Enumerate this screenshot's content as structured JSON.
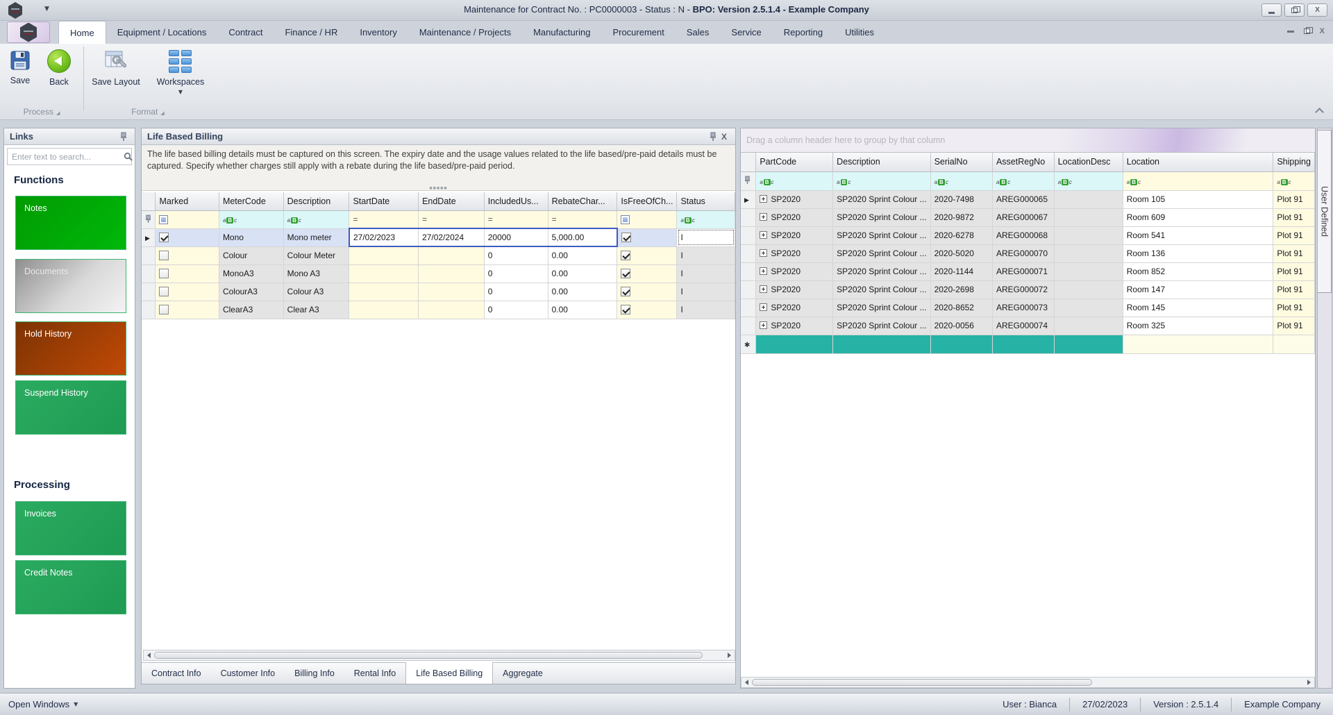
{
  "titlebar": {
    "title_left": "Maintenance for Contract No. : PC0000003 - Status : N - ",
    "title_right": "BPO: Version 2.5.1.4 - Example Company"
  },
  "ribbon": {
    "tabs": [
      {
        "label": "Home",
        "active": true
      },
      {
        "label": "Equipment / Locations"
      },
      {
        "label": "Contract"
      },
      {
        "label": "Finance / HR"
      },
      {
        "label": "Inventory"
      },
      {
        "label": "Maintenance / Projects"
      },
      {
        "label": "Manufacturing"
      },
      {
        "label": "Procurement"
      },
      {
        "label": "Sales"
      },
      {
        "label": "Service"
      },
      {
        "label": "Reporting"
      },
      {
        "label": "Utilities"
      }
    ],
    "buttons": [
      {
        "label": "Save",
        "icon": "floppy-disk-icon"
      },
      {
        "label": "Back",
        "icon": "back-arrow-icon"
      },
      {
        "label": "Save Layout",
        "icon": "layout-wrench-icon"
      },
      {
        "label": "Workspaces",
        "icon": "workspace-tiles-icon",
        "has_dropdown": true
      }
    ],
    "groups": [
      {
        "label": "Process"
      },
      {
        "label": "Format"
      }
    ]
  },
  "links_panel": {
    "title": "Links",
    "search_placeholder": "Enter text to search...",
    "sections": [
      {
        "heading": "Functions",
        "buttons": [
          {
            "label": "Notes",
            "style": "bright-green"
          },
          {
            "label": "Documents",
            "style": "silver"
          },
          {
            "label": "Hold History",
            "style": "rust-orange"
          },
          {
            "label": "Suspend History",
            "style": "green"
          }
        ]
      },
      {
        "heading": "Processing",
        "buttons": [
          {
            "label": "Invoices",
            "style": "green"
          },
          {
            "label": "Credit Notes",
            "style": "green"
          }
        ]
      }
    ]
  },
  "billing_panel": {
    "title": "Life Based Billing",
    "description": "The life based billing details must be captured on this screen.  The expiry date and the usage values related to the life based/pre-paid details must be captured. Specify whether charges still apply with a rebate during the life based/pre-paid period.",
    "columns": [
      "Marked",
      "MeterCode",
      "Description",
      "StartDate",
      "EndDate",
      "IncludedUs...",
      "RebateChar...",
      "IsFreeOfCh...",
      "Status"
    ],
    "rows": [
      {
        "marked": true,
        "meter_code": "Mono",
        "description": "Mono meter",
        "start_date": "27/02/2023",
        "end_date": "27/02/2024",
        "included_usage": "20000",
        "rebate_charge": "5,000.00",
        "is_free": true,
        "status": "I",
        "selected": true
      },
      {
        "marked": false,
        "meter_code": "Colour",
        "description": "Colour Meter",
        "start_date": "",
        "end_date": "",
        "included_usage": "0",
        "rebate_charge": "0.00",
        "is_free": true,
        "status": "I",
        "selected": false
      },
      {
        "marked": false,
        "meter_code": "MonoA3",
        "description": "Mono A3",
        "start_date": "",
        "end_date": "",
        "included_usage": "0",
        "rebate_charge": "0.00",
        "is_free": true,
        "status": "I",
        "selected": false
      },
      {
        "marked": false,
        "meter_code": "ColourA3",
        "description": "Colour A3",
        "start_date": "",
        "end_date": "",
        "included_usage": "0",
        "rebate_charge": "0.00",
        "is_free": true,
        "status": "I",
        "selected": false
      },
      {
        "marked": false,
        "meter_code": "ClearA3",
        "description": "Clear A3",
        "start_date": "",
        "end_date": "",
        "included_usage": "0",
        "rebate_charge": "0.00",
        "is_free": true,
        "status": "I",
        "selected": false
      }
    ],
    "tabs": [
      {
        "label": "Contract Info"
      },
      {
        "label": "Customer Info"
      },
      {
        "label": "Billing Info"
      },
      {
        "label": "Rental Info"
      },
      {
        "label": "Life Based Billing",
        "active": true
      },
      {
        "label": "Aggregate"
      }
    ]
  },
  "equipment_panel": {
    "group_by_hint": "Drag a column header here to group by that column",
    "columns": [
      "PartCode",
      "Description",
      "SerialNo",
      "AssetRegNo",
      "LocationDesc",
      "Location",
      "Shipping"
    ],
    "rows": [
      {
        "part_code": "SP2020",
        "description": "SP2020 Sprint Colour ...",
        "serial_no": "2020-7498",
        "asset_reg_no": "AREG000065",
        "location_desc": "",
        "location": "Room 105",
        "shipping": "Plot 91"
      },
      {
        "part_code": "SP2020",
        "description": "SP2020 Sprint Colour ...",
        "serial_no": "2020-9872",
        "asset_reg_no": "AREG000067",
        "location_desc": "",
        "location": "Room 609",
        "shipping": "Plot 91"
      },
      {
        "part_code": "SP2020",
        "description": "SP2020 Sprint Colour ...",
        "serial_no": "2020-6278",
        "asset_reg_no": "AREG000068",
        "location_desc": "",
        "location": "Room 541",
        "shipping": "Plot 91"
      },
      {
        "part_code": "SP2020",
        "description": "SP2020 Sprint Colour ...",
        "serial_no": "2020-5020",
        "asset_reg_no": "AREG000070",
        "location_desc": "",
        "location": "Room 136",
        "shipping": "Plot 91"
      },
      {
        "part_code": "SP2020",
        "description": "SP2020 Sprint Colour ...",
        "serial_no": "2020-1144",
        "asset_reg_no": "AREG000071",
        "location_desc": "",
        "location": "Room 852",
        "shipping": "Plot 91"
      },
      {
        "part_code": "SP2020",
        "description": "SP2020 Sprint Colour ...",
        "serial_no": "2020-2698",
        "asset_reg_no": "AREG000072",
        "location_desc": "",
        "location": "Room 147",
        "shipping": "Plot 91"
      },
      {
        "part_code": "SP2020",
        "description": "SP2020 Sprint Colour ...",
        "serial_no": "2020-8652",
        "asset_reg_no": "AREG000073",
        "location_desc": "",
        "location": "Room 145",
        "shipping": "Plot 91"
      },
      {
        "part_code": "SP2020",
        "description": "SP2020 Sprint Colour ...",
        "serial_no": "2020-0056",
        "asset_reg_no": "AREG000074",
        "location_desc": "",
        "location": "Room 325",
        "shipping": "Plot 91"
      }
    ],
    "side_tab_label": "User Defined"
  },
  "status_bar": {
    "open_windows_label": "Open Windows",
    "user": "User : Bianca",
    "date": "27/02/2023",
    "version": "Version : 2.5.1.4",
    "company": "Example Company"
  },
  "colors": {
    "accent_teal": "#26b3a6",
    "selected_row": "#d9e2f5",
    "edit_border": "#3b5bbf",
    "filter_cyan": "#dbf7f8",
    "cell_yellow": "#fffbe1",
    "cell_gray": "#e4e4e4",
    "button_green": "#27a55c",
    "button_bright_green": "#00a509",
    "button_rust": "#b24708"
  }
}
